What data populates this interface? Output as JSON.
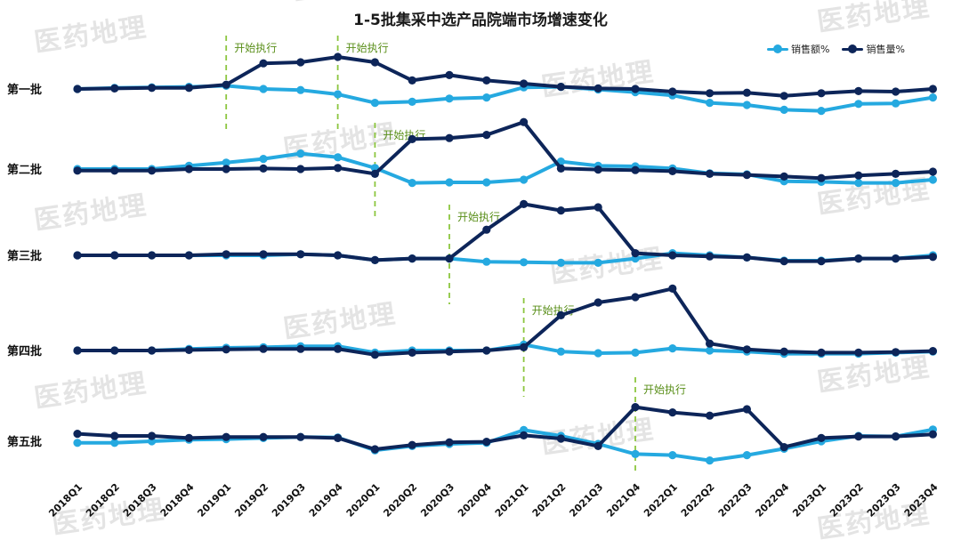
{
  "chart_data": {
    "type": "line",
    "title": "1-5批集采中选产品院端市场增速变化",
    "categories": [
      "2018Q1",
      "2018Q2",
      "2018Q3",
      "2018Q4",
      "2019Q1",
      "2019Q2",
      "2019Q3",
      "2019Q4",
      "2020Q1",
      "2020Q2",
      "2020Q3",
      "2020Q4",
      "2021Q1",
      "2021Q2",
      "2021Q3",
      "2021Q4",
      "2022Q1",
      "2022Q2",
      "2022Q3",
      "2022Q4",
      "2023Q1",
      "2023Q2",
      "2023Q3",
      "2023Q4"
    ],
    "legend": [
      "销售额%",
      "销售量%"
    ],
    "legend_position": "top-right",
    "colors": {
      "sales_value": "#25a9e0",
      "sales_volume": "#0d2559",
      "start_marker": "#8cc63f"
    },
    "panels": [
      {
        "label": "第一批",
        "start_labels": [
          {
            "index": 4,
            "text": "开始执行"
          },
          {
            "index": 7,
            "text": "开始执行"
          }
        ],
        "series": [
          {
            "name": "销售额%",
            "values": [
              0.0,
              0.2,
              0.3,
              0.4,
              0.6,
              0.0,
              -0.2,
              -1.0,
              -2.6,
              -2.4,
              -1.8,
              -1.6,
              0.3,
              0.4,
              -0.1,
              -0.6,
              -1.2,
              -2.6,
              -3.0,
              -3.9,
              -4.1,
              -2.8,
              -2.7,
              -1.6
            ]
          },
          {
            "name": "销售量%",
            "values": [
              0.0,
              0.1,
              0.2,
              0.2,
              0.8,
              4.8,
              5.0,
              6.0,
              5.0,
              1.6,
              2.6,
              1.6,
              1.0,
              0.4,
              0.1,
              0.0,
              -0.5,
              -0.8,
              -0.7,
              -1.3,
              -0.8,
              -0.4,
              -0.5,
              0.0
            ]
          }
        ]
      },
      {
        "label": "第二批",
        "start_labels": [
          {
            "index": 8,
            "text": "开始执行"
          }
        ],
        "series": [
          {
            "name": "销售额%",
            "values": [
              0.0,
              0.0,
              0.0,
              0.6,
              1.2,
              1.9,
              2.9,
              2.2,
              0.2,
              -2.6,
              -2.5,
              -2.5,
              -2.0,
              1.4,
              0.6,
              0.5,
              0.1,
              -0.8,
              -1.0,
              -2.3,
              -2.4,
              -2.6,
              -2.6,
              -2.0
            ]
          },
          {
            "name": "销售量%",
            "values": [
              -0.3,
              -0.3,
              -0.3,
              0.0,
              0.0,
              0.1,
              0.0,
              0.2,
              -0.9,
              5.6,
              5.8,
              6.4,
              8.8,
              0.1,
              -0.1,
              -0.2,
              -0.4,
              -0.9,
              -1.1,
              -1.4,
              -1.7,
              -1.2,
              -0.9,
              -0.5
            ]
          }
        ]
      },
      {
        "label": "第三批",
        "start_labels": [
          {
            "index": 10,
            "text": "开始执行"
          }
        ],
        "series": [
          {
            "name": "销售额%",
            "values": [
              0.0,
              0.0,
              0.0,
              0.0,
              0.0,
              0.0,
              0.2,
              0.0,
              -0.9,
              -0.6,
              -0.6,
              -1.2,
              -1.3,
              -1.4,
              -1.4,
              -0.6,
              0.4,
              0.0,
              -0.4,
              -1.0,
              -1.0,
              -0.6,
              -0.6,
              0.0
            ]
          },
          {
            "name": "销售量%",
            "values": [
              0.0,
              0.0,
              0.0,
              0.0,
              0.2,
              0.2,
              0.2,
              0.0,
              -0.9,
              -0.6,
              -0.6,
              4.8,
              9.6,
              8.4,
              9.0,
              0.4,
              0.0,
              -0.2,
              -0.4,
              -1.1,
              -1.1,
              -0.6,
              -0.6,
              -0.3
            ]
          }
        ]
      },
      {
        "label": "第四批",
        "start_labels": [
          {
            "index": 12,
            "text": "开始执行"
          }
        ],
        "series": [
          {
            "name": "销售额%",
            "values": [
              0.0,
              0.0,
              0.0,
              0.3,
              0.5,
              0.6,
              0.8,
              0.8,
              -0.4,
              0.0,
              0.0,
              0.0,
              1.1,
              -0.2,
              -0.5,
              -0.4,
              0.4,
              0.0,
              -0.2,
              -0.6,
              -0.6,
              -0.6,
              -0.4,
              -0.2
            ]
          },
          {
            "name": "销售量%",
            "values": [
              0.0,
              0.0,
              0.0,
              0.1,
              0.2,
              0.3,
              0.3,
              0.3,
              -0.8,
              -0.4,
              -0.2,
              0.0,
              0.6,
              6.6,
              9.0,
              10.0,
              11.6,
              1.3,
              0.2,
              -0.2,
              -0.4,
              -0.4,
              -0.3,
              -0.1
            ]
          }
        ]
      },
      {
        "label": "第五批",
        "start_labels": [
          {
            "index": 15,
            "text": "开始执行"
          }
        ],
        "series": [
          {
            "name": "销售额%",
            "values": [
              -0.3,
              -0.3,
              0.0,
              0.3,
              0.4,
              0.6,
              0.8,
              0.7,
              -1.7,
              -0.9,
              -0.5,
              -0.3,
              2.1,
              1.0,
              -0.5,
              -2.4,
              -2.6,
              -3.6,
              -2.6,
              -1.4,
              0.0,
              1.0,
              0.9,
              2.2
            ]
          },
          {
            "name": "销售量%",
            "values": [
              1.4,
              1.0,
              1.0,
              0.6,
              0.8,
              0.8,
              0.8,
              0.6,
              -1.5,
              -0.7,
              -0.2,
              -0.1,
              1.1,
              0.5,
              -0.9,
              6.4,
              5.4,
              4.8,
              6.0,
              -1.1,
              0.6,
              0.9,
              0.9,
              1.3
            ]
          }
        ]
      }
    ]
  },
  "watermark": "医药地理"
}
